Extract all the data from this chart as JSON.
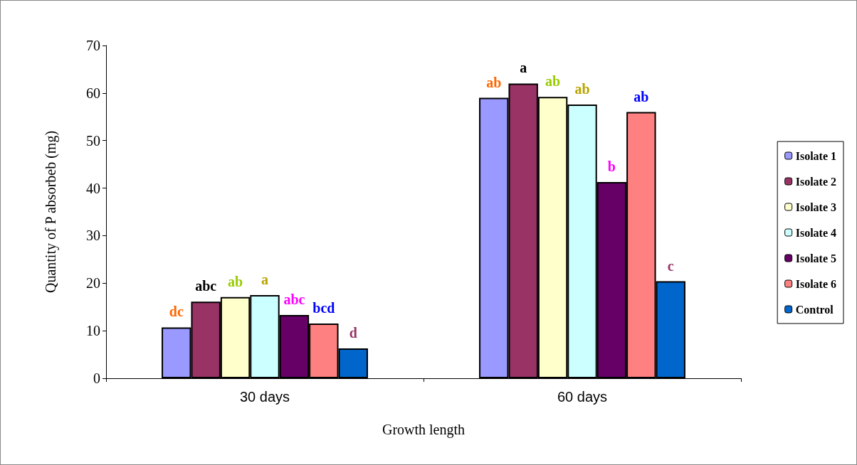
{
  "chart_data": {
    "type": "bar",
    "xlabel": "Growth length",
    "ylabel": "Quantity of P absorbeb (mg)",
    "categories": [
      "30 days",
      "60 days"
    ],
    "series": [
      {
        "name": "Isolate 1",
        "color": "#9999ff",
        "values": [
          10.7,
          59
        ],
        "value_labels": [
          "dc",
          "ab"
        ]
      },
      {
        "name": "Isolate 2",
        "color": "#993366",
        "values": [
          16.1,
          62
        ],
        "value_labels": [
          "abc",
          "a"
        ]
      },
      {
        "name": "Isolate 3",
        "color": "#ffffcc",
        "values": [
          17.1,
          59.2
        ],
        "value_labels": [
          "ab",
          "ab"
        ]
      },
      {
        "name": "Isolate 4",
        "color": "#ccffff",
        "values": [
          17.5,
          57.6
        ],
        "value_labels": [
          "a",
          "ab"
        ]
      },
      {
        "name": "Isolate 5",
        "color": "#660066",
        "values": [
          13.3,
          41.3
        ],
        "value_labels": [
          "abc",
          "b"
        ]
      },
      {
        "name": "Isolate 6",
        "color": "#ff8080",
        "values": [
          11.5,
          56
        ],
        "value_labels": [
          "bcd",
          "ab"
        ]
      },
      {
        "name": "Control",
        "color": "#0066cc",
        "values": [
          6.3,
          20.4
        ],
        "value_labels": [
          "d",
          "c"
        ]
      }
    ],
    "ylim": [
      0,
      70
    ],
    "yticks": [
      0,
      10,
      20,
      30,
      40,
      50,
      60,
      70
    ],
    "grid": false,
    "legend": "right"
  }
}
